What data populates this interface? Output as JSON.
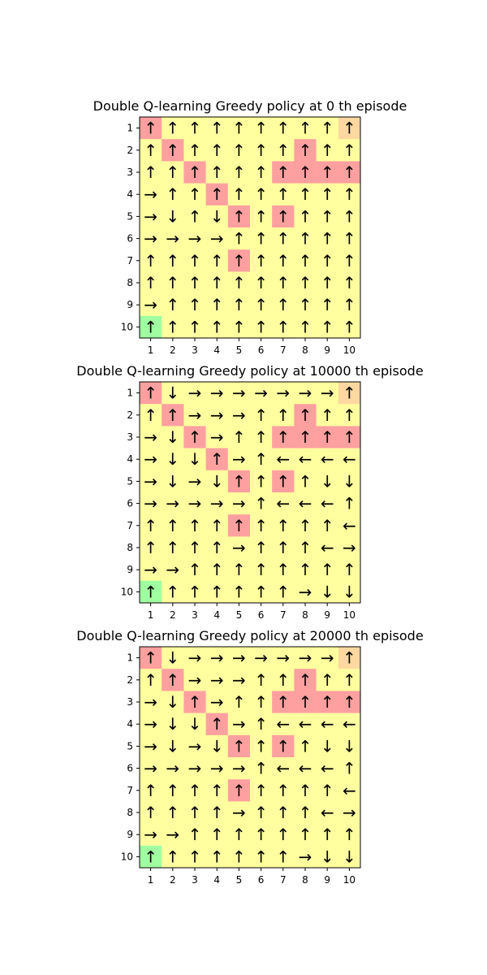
{
  "colors": {
    "default": "#ffffa0",
    "wall": "#ffa0a0",
    "start": "#a0ffa0",
    "goal": "#ffd8a0",
    "frame": "#000000",
    "arrow": "#000000"
  },
  "arrow_glyphs": {
    "U": "↑",
    "D": "↓",
    "L": "←",
    "R": "→"
  },
  "chart_data": [
    {
      "type": "heatmap",
      "title": "Double Q-learning Greedy policy at 0 th episode",
      "x_ticks": [
        "1",
        "2",
        "3",
        "4",
        "5",
        "6",
        "7",
        "8",
        "9",
        "10"
      ],
      "y_ticks": [
        "1",
        "2",
        "3",
        "4",
        "5",
        "6",
        "7",
        "8",
        "9",
        "10"
      ],
      "cell_types": [
        "WDDDDDDDDG",
        "DWDDDDDWDD",
        "DDWDDDWWWW",
        "DDDWDDDDDD",
        "DDDDWDWDDD",
        "DDDDDDDDDD",
        "DDDDWDDDDD",
        "DDDDDDDDDD",
        "DDDDDDDDDD",
        "SDDDDDDDDD"
      ],
      "policy": [
        "UUUUUUUUUU",
        "UUUUUUUUUU",
        "UUUUUUUUUU",
        "RUUUUUUUUU",
        "RDUDUUUUUU",
        "RRRRUUUUUU",
        "UUUUUUUUUU",
        "UUUUUUUUUU",
        "RUUUUUUUUU",
        "UUUUUUUUUU"
      ]
    },
    {
      "type": "heatmap",
      "title": "Double Q-learning Greedy policy at 10000 th episode",
      "x_ticks": [
        "1",
        "2",
        "3",
        "4",
        "5",
        "6",
        "7",
        "8",
        "9",
        "10"
      ],
      "y_ticks": [
        "1",
        "2",
        "3",
        "4",
        "5",
        "6",
        "7",
        "8",
        "9",
        "10"
      ],
      "cell_types": [
        "WDDDDDDDDG",
        "DWDDDDDWDD",
        "DDWDDDWWWW",
        "DDDWDDDDDD",
        "DDDDWDWDDD",
        "DDDDDDDDDD",
        "DDDDWDDDDD",
        "DDDDDDDDDD",
        "DDDDDDDDDD",
        "SDDDDDDDDD"
      ],
      "policy": [
        "UDRRRRRRRU",
        "UURRRUUUUU",
        "RDURUUUUUU",
        "RDDURULLLL",
        "RDRDUUUUDD",
        "RRRRRULLLU",
        "UUUUUUUUUL",
        "UUUURUUULR",
        "RRUUUUUUUU",
        "UUUUUUURDD"
      ]
    },
    {
      "type": "heatmap",
      "title": "Double Q-learning Greedy policy at 20000 th episode",
      "x_ticks": [
        "1",
        "2",
        "3",
        "4",
        "5",
        "6",
        "7",
        "8",
        "9",
        "10"
      ],
      "y_ticks": [
        "1",
        "2",
        "3",
        "4",
        "5",
        "6",
        "7",
        "8",
        "9",
        "10"
      ],
      "cell_types": [
        "WDDDDDDDDG",
        "DWDDDDDWDD",
        "DDWDDDWWWW",
        "DDDWDDDDDD",
        "DDDDWDWDDD",
        "DDDDDDDDDD",
        "DDDDWDDDDD",
        "DDDDDDDDDD",
        "DDDDDDDDDD",
        "SDDDDDDDDD"
      ],
      "policy": [
        "UDRRRRRRRU",
        "UURRRUUUUU",
        "RDURUUUUUU",
        "RDDURULLLL",
        "RDRDUUUUDD",
        "RRRRRULLLU",
        "UUUUUUUUUL",
        "UUUURUUULR",
        "RRUUUUUUUU",
        "UUUUUUURDD"
      ]
    }
  ]
}
